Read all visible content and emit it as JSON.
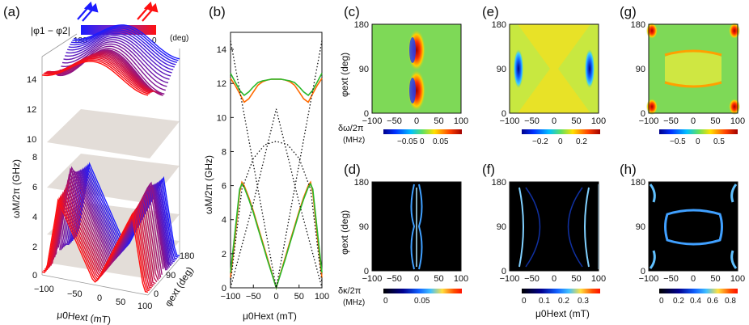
{
  "figure": {
    "panel_labels": [
      "(a)",
      "(b)",
      "(c)",
      "(d)",
      "(e)",
      "(f)",
      "(g)",
      "(h)"
    ],
    "colorbar_a": {
      "label": "|φ1 − φ2|",
      "left_value": "180",
      "right_value": "0",
      "unit": "(deg)",
      "color_left": "#1c1cff",
      "color_right": "#ff1010"
    },
    "panel_a": {
      "zlabel": "ωM/2π (GHz)",
      "z_ticks": [
        "0",
        "2",
        "4",
        "6",
        "8",
        "10",
        "12",
        "14"
      ],
      "x_ticks": [
        "−100",
        "−50",
        "0",
        "50",
        "100"
      ],
      "xlabel": "μ0Hext (mT)",
      "y_ticks": [
        "0",
        "90",
        "180"
      ],
      "ylabel": "φext (deg)"
    },
    "maps": {
      "ylabel": "φext (deg)",
      "y_ticks": [
        "0",
        "90",
        "180"
      ],
      "x_ticks": [
        "−100",
        "−50",
        "0",
        "50",
        "100"
      ],
      "xlabel": "μ0Hext (mT)",
      "cb_label_top": "δω/2π",
      "cb_unit_top": "(MHz)",
      "cb_label_bottom": "δκ/2π",
      "cb_unit_bottom": "(MHz)",
      "cb_c_ticks": [
        "−0.05",
        "0",
        "0.05"
      ],
      "cb_e_ticks": [
        "−0.2",
        "0",
        "0.2"
      ],
      "cb_g_ticks": [
        "−0.5",
        "0",
        "0.5"
      ],
      "cb_d_ticks": [
        "0",
        "0.05"
      ],
      "cb_f_ticks": [
        "0",
        "0.1",
        "0.2",
        "0.3"
      ],
      "cb_h_ticks": [
        "0",
        "0.2",
        "0.4",
        "0.6",
        "0.8"
      ]
    }
  },
  "chart_data": [
    {
      "id": "b",
      "type": "line",
      "title": "",
      "xlabel": "μ0Hext (mT)",
      "ylabel": "ωM/2π (GHz)",
      "xlim": [
        -100,
        100
      ],
      "ylim": [
        0,
        15
      ],
      "x_ticks": [
        -100,
        -50,
        0,
        50,
        100
      ],
      "x_tick_labels": [
        "−100",
        "−50",
        "0",
        "50",
        "100"
      ],
      "y_ticks": [
        0,
        2,
        4,
        6,
        8,
        10,
        12,
        14
      ],
      "y_tick_labels": [
        "0",
        "2",
        "4",
        "6",
        "8",
        "10",
        "12",
        "14"
      ],
      "series": [
        {
          "name": "upper-orange",
          "color": "#ff6a00",
          "style": "solid",
          "x": [
            -100,
            -90,
            -80,
            -70,
            -60,
            -50,
            -40,
            -30,
            -20,
            -10,
            0,
            10,
            20,
            30,
            40,
            50,
            60,
            70,
            80,
            90,
            100
          ],
          "y": [
            12.3,
            11.9,
            11.4,
            10.9,
            11.1,
            11.5,
            11.9,
            12.1,
            12.2,
            12.25,
            12.25,
            12.25,
            12.2,
            12.1,
            11.9,
            11.5,
            11.1,
            10.9,
            11.4,
            11.9,
            12.3
          ]
        },
        {
          "name": "upper-green",
          "color": "#2ab82a",
          "style": "solid",
          "x": [
            -100,
            -90,
            -80,
            -70,
            -60,
            -50,
            -40,
            -30,
            -20,
            -10,
            0,
            10,
            20,
            30,
            40,
            50,
            60,
            70,
            80,
            90,
            100
          ],
          "y": [
            12.6,
            12.1,
            11.6,
            11.3,
            11.5,
            11.8,
            12.05,
            12.15,
            12.2,
            12.25,
            12.25,
            12.25,
            12.2,
            12.15,
            12.05,
            11.8,
            11.5,
            11.3,
            11.6,
            12.1,
            12.6
          ]
        },
        {
          "name": "lower-orange",
          "color": "#ff6a00",
          "style": "solid",
          "x": [
            -100,
            -90,
            -80,
            -75,
            -70,
            -60,
            -50,
            -40,
            -30,
            -20,
            -10,
            0,
            10,
            20,
            30,
            40,
            50,
            60,
            70,
            75,
            80,
            90,
            100
          ],
          "y": [
            0.6,
            3.0,
            5.6,
            6.2,
            6.0,
            5.3,
            4.5,
            3.6,
            2.7,
            1.8,
            0.9,
            0.0,
            0.9,
            1.8,
            2.7,
            3.6,
            4.5,
            5.3,
            6.0,
            6.2,
            5.6,
            3.0,
            0.6
          ]
        },
        {
          "name": "lower-green",
          "color": "#2ab82a",
          "style": "solid",
          "x": [
            -100,
            -90,
            -80,
            -75,
            -70,
            -60,
            -50,
            -40,
            -30,
            -20,
            -10,
            0,
            10,
            20,
            30,
            40,
            50,
            60,
            70,
            75,
            80,
            90,
            100
          ],
          "y": [
            0.9,
            3.3,
            5.8,
            6.1,
            5.9,
            5.2,
            4.4,
            3.5,
            2.6,
            1.7,
            0.85,
            0.0,
            0.85,
            1.7,
            2.6,
            3.5,
            4.4,
            5.2,
            5.9,
            6.1,
            5.8,
            3.3,
            0.9
          ]
        },
        {
          "name": "dotted-lower",
          "color": "#111111",
          "style": "dotted",
          "x": [
            -100,
            -75,
            -50,
            -25,
            0,
            25,
            50,
            75,
            100
          ],
          "y": [
            0.3,
            5.8,
            7.6,
            8.4,
            8.6,
            8.4,
            7.6,
            5.8,
            0.3
          ]
        },
        {
          "name": "dotted-diag-1",
          "color": "#111111",
          "style": "dotted",
          "x": [
            -100,
            0,
            100
          ],
          "y": [
            14.5,
            0.0,
            14.5
          ]
        },
        {
          "name": "dotted-diag-2",
          "color": "#111111",
          "style": "dotted",
          "x": [
            -100,
            -50,
            0,
            50,
            100
          ],
          "y": [
            0.0,
            5.0,
            10.5,
            5.0,
            0.0
          ]
        }
      ]
    },
    {
      "id": "c",
      "type": "heatmap",
      "xlabel": "μ0Hext (mT)",
      "ylabel": "φext (deg)",
      "xlim": [
        -100,
        100
      ],
      "ylim": [
        0,
        180
      ],
      "colorbar": {
        "label": "δω/2π (MHz)",
        "range": [
          -0.08,
          0.08
        ]
      }
    },
    {
      "id": "e",
      "type": "heatmap",
      "xlabel": "μ0Hext (mT)",
      "ylabel": "φext (deg)",
      "xlim": [
        -100,
        100
      ],
      "ylim": [
        0,
        180
      ],
      "colorbar": {
        "label": "δω/2π (MHz)",
        "range": [
          -0.3,
          0.3
        ]
      }
    },
    {
      "id": "g",
      "type": "heatmap",
      "xlabel": "μ0Hext (mT)",
      "ylabel": "φext (deg)",
      "xlim": [
        -100,
        100
      ],
      "ylim": [
        0,
        180
      ],
      "colorbar": {
        "label": "δω/2π (MHz)",
        "range": [
          -0.8,
          0.8
        ]
      }
    },
    {
      "id": "d",
      "type": "heatmap",
      "xlabel": "μ0Hext (mT)",
      "ylabel": "φext (deg)",
      "xlim": [
        -100,
        100
      ],
      "ylim": [
        0,
        180
      ],
      "colorbar": {
        "label": "δκ/2π (MHz)",
        "range": [
          0,
          0.1
        ]
      }
    },
    {
      "id": "f",
      "type": "heatmap",
      "xlabel": "μ0Hext (mT)",
      "ylabel": "φext (deg)",
      "xlim": [
        -100,
        100
      ],
      "ylim": [
        0,
        180
      ],
      "colorbar": {
        "label": "δκ/2π (MHz)",
        "range": [
          0,
          0.4
        ]
      }
    },
    {
      "id": "h",
      "type": "heatmap",
      "xlabel": "μ0Hext (mT)",
      "ylabel": "φext (deg)",
      "xlim": [
        -100,
        100
      ],
      "ylim": [
        0,
        180
      ],
      "colorbar": {
        "label": "δκ/2π (MHz)",
        "range": [
          0,
          0.8
        ]
      }
    }
  ]
}
